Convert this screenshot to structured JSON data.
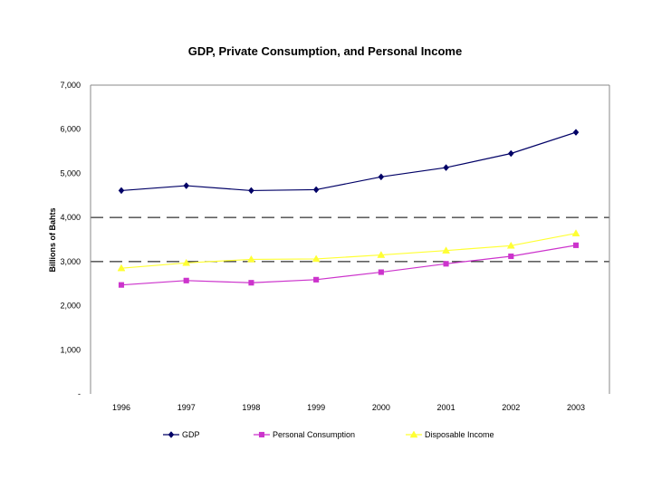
{
  "chart_data": {
    "type": "line",
    "title": "GDP, Private Consumption, and Personal Income",
    "xlabel": "",
    "ylabel": "Billions of Bahts",
    "categories": [
      "1996",
      "1997",
      "1998",
      "1999",
      "2000",
      "2001",
      "2002",
      "2003"
    ],
    "ylim": [
      0,
      7000
    ],
    "yticks": [
      0,
      1000,
      2000,
      3000,
      4000,
      5000,
      6000,
      7000
    ],
    "ytick_labels": [
      "-",
      "1,000",
      "2,000",
      "3,000",
      "4,000",
      "5,000",
      "6,000",
      "7,000"
    ],
    "grid": "dashed lines at 3,000 and 4,000",
    "legend_position": "bottom",
    "series": [
      {
        "name": "GDP",
        "marker": "diamond",
        "color": "#000066",
        "values": [
          4610,
          4720,
          4610,
          4630,
          4920,
          5130,
          5450,
          5930
        ]
      },
      {
        "name": "Personal Consumption",
        "marker": "square",
        "color": "#cc33cc",
        "values": [
          2470,
          2570,
          2520,
          2590,
          2760,
          2950,
          3120,
          3370
        ]
      },
      {
        "name": "Disposable Income",
        "marker": "triangle",
        "color": "#ffff33",
        "values": [
          2850,
          2970,
          3050,
          3060,
          3150,
          3250,
          3360,
          3640
        ]
      }
    ]
  }
}
